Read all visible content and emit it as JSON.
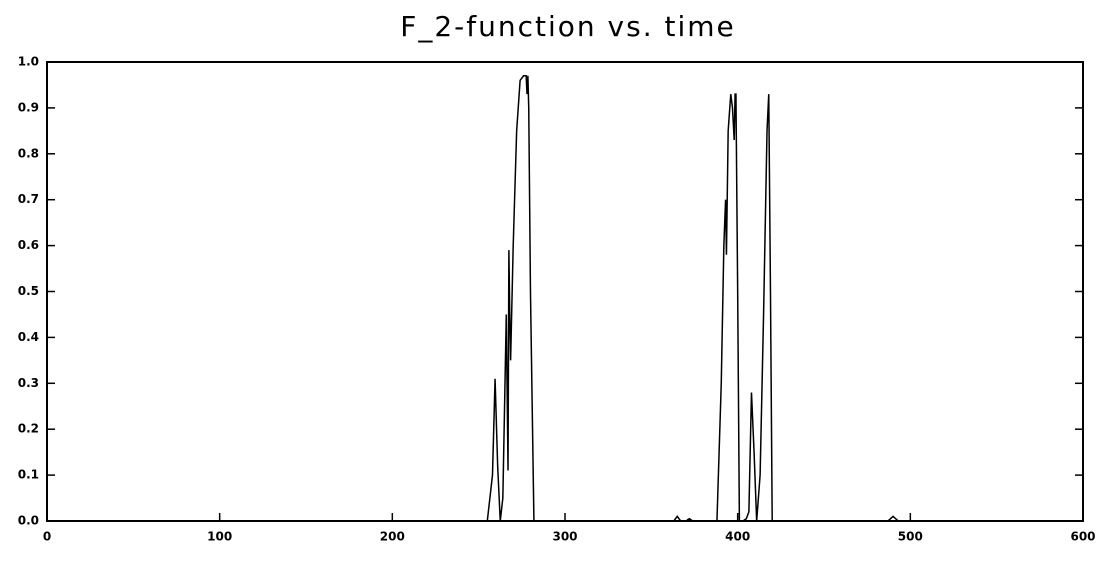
{
  "chart_data": {
    "type": "line",
    "title": "F_2-function vs. time",
    "x": [
      0,
      255,
      258,
      259.5,
      261,
      262.5,
      264,
      266,
      267,
      267.5,
      268,
      268.5,
      270,
      272,
      274,
      276,
      277.5,
      278,
      278.5,
      279,
      280,
      282,
      363,
      365,
      367,
      370,
      372,
      374,
      388,
      390.5,
      392,
      393,
      393.5,
      394.5,
      396,
      397,
      398,
      398.5,
      399,
      400,
      401,
      403,
      405,
      406.5,
      408,
      409.5,
      411,
      413,
      415,
      417,
      418,
      419,
      420,
      487,
      490,
      493,
      600
    ],
    "series": [
      {
        "color": "#000000",
        "values": [
          0,
          0,
          0.1,
          0.31,
          0.12,
          0.0,
          0.05,
          0.45,
          0.11,
          0.59,
          0.45,
          0.35,
          0.6,
          0.85,
          0.96,
          0.97,
          0.97,
          0.93,
          0.97,
          0.9,
          0.5,
          0.0,
          0,
          0.01,
          0,
          0,
          0.005,
          0,
          0,
          0.3,
          0.6,
          0.7,
          0.58,
          0.85,
          0.93,
          0.9,
          0.83,
          0.93,
          0.93,
          0.5,
          0.0,
          0.0,
          0.005,
          0.02,
          0.28,
          0.15,
          0.0,
          0.1,
          0.45,
          0.85,
          0.93,
          0.5,
          0.0,
          0,
          0.01,
          0,
          0
        ]
      }
    ],
    "xlim": [
      0,
      600
    ],
    "xticks": [
      0,
      100,
      200,
      300,
      400,
      500,
      600
    ],
    "ylim": [
      0,
      1
    ],
    "yticks": [
      {
        "value": 0,
        "label": "0.0"
      },
      0.1,
      0.2,
      0.3,
      0.4,
      0.5,
      0.6,
      0.7,
      0.8,
      0.9,
      {
        "value": 1,
        "label": "1.0"
      }
    ]
  }
}
